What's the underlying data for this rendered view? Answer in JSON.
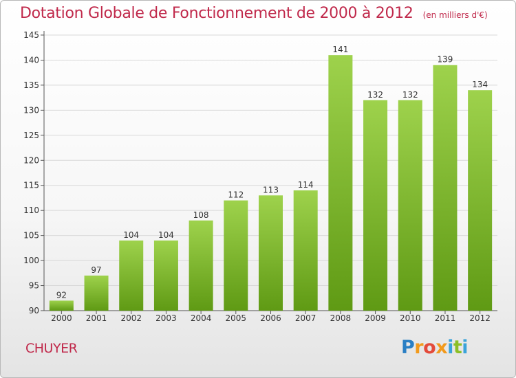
{
  "header": {
    "title": "Dotation Globale de Fonctionnement de 2000 à 2012",
    "unit": "(en milliers d'€)"
  },
  "footer": {
    "commune": "CHUYER",
    "logo_text": "Proxiti"
  },
  "colors": {
    "title": "#c0294b",
    "bar_top": "#9ed24c",
    "bar_bottom": "#5f9a14",
    "grid": "#d8d8d8"
  },
  "chart_data": {
    "type": "bar",
    "title": "Dotation Globale de Fonctionnement de 2000 à 2012",
    "subtitle": "(en milliers d'€)",
    "xlabel": "",
    "ylabel": "",
    "ylim": [
      90,
      145
    ],
    "yticks": [
      90,
      95,
      100,
      105,
      110,
      115,
      120,
      125,
      130,
      135,
      140,
      145
    ],
    "grid": true,
    "categories": [
      "2000",
      "2001",
      "2002",
      "2003",
      "2004",
      "2005",
      "2006",
      "2007",
      "2008",
      "2009",
      "2010",
      "2011",
      "2012"
    ],
    "values": [
      92,
      97,
      104,
      104,
      108,
      112,
      113,
      114,
      141,
      132,
      132,
      139,
      134
    ]
  }
}
